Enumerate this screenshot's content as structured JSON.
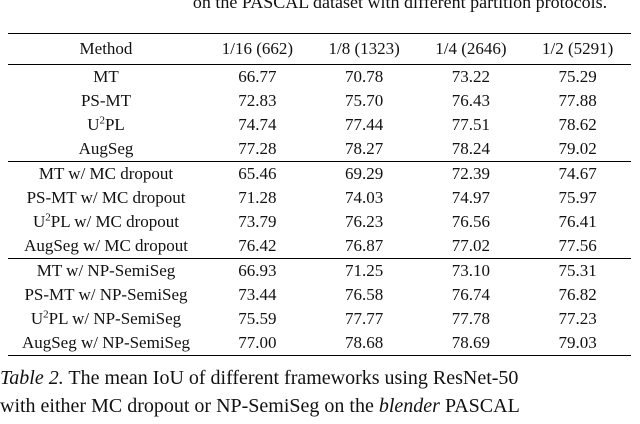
{
  "top_fragment": "on the PASCAL dataset with different partition protocols.",
  "table": {
    "headers": [
      "Method",
      "1/16 (662)",
      "1/8 (1323)",
      "1/4 (2646)",
      "1/2 (5291)"
    ],
    "groups": [
      [
        {
          "method": "MT",
          "values": [
            "66.77",
            "70.78",
            "73.22",
            "75.29"
          ]
        },
        {
          "method": "PS-MT",
          "values": [
            "72.83",
            "75.70",
            "76.43",
            "77.88"
          ]
        },
        {
          "method_pre": "U",
          "method_sup": "2",
          "method_post": "PL",
          "values": [
            "74.74",
            "77.44",
            "77.51",
            "78.62"
          ]
        },
        {
          "method": "AugSeg",
          "values": [
            "77.28",
            "78.27",
            "78.24",
            "79.02"
          ]
        }
      ],
      [
        {
          "method": "MT w/ MC dropout",
          "values": [
            "65.46",
            "69.29",
            "72.39",
            "74.67"
          ]
        },
        {
          "method": "PS-MT w/ MC dropout",
          "values": [
            "71.28",
            "74.03",
            "74.97",
            "75.97"
          ]
        },
        {
          "method_pre": "U",
          "method_sup": "2",
          "method_post": "PL w/ MC dropout",
          "values": [
            "73.79",
            "76.23",
            "76.56",
            "76.41"
          ]
        },
        {
          "method": "AugSeg w/ MC dropout",
          "values": [
            "76.42",
            "76.87",
            "77.02",
            "77.56"
          ]
        }
      ],
      [
        {
          "method": "MT w/ NP-SemiSeg",
          "values": [
            "66.93",
            "71.25",
            "73.10",
            "75.31"
          ]
        },
        {
          "method": "PS-MT w/ NP-SemiSeg",
          "values": [
            "73.44",
            "76.58",
            "76.74",
            "76.82"
          ]
        },
        {
          "method_pre": "U",
          "method_sup": "2",
          "method_post": "PL w/ NP-SemiSeg",
          "values": [
            "75.59",
            "77.77",
            "77.78",
            "77.23"
          ]
        },
        {
          "method": "AugSeg w/ NP-SemiSeg",
          "values": [
            "77.00",
            "78.68",
            "78.69",
            "79.03"
          ]
        }
      ]
    ]
  },
  "caption": {
    "label": "Table 2.",
    "line1": " The mean IoU of different frameworks using ResNet-50",
    "line2_pre": "with either MC dropout or NP-SemiSeg on the ",
    "line2_em": "blender",
    "line2_post": " PASCAL"
  }
}
